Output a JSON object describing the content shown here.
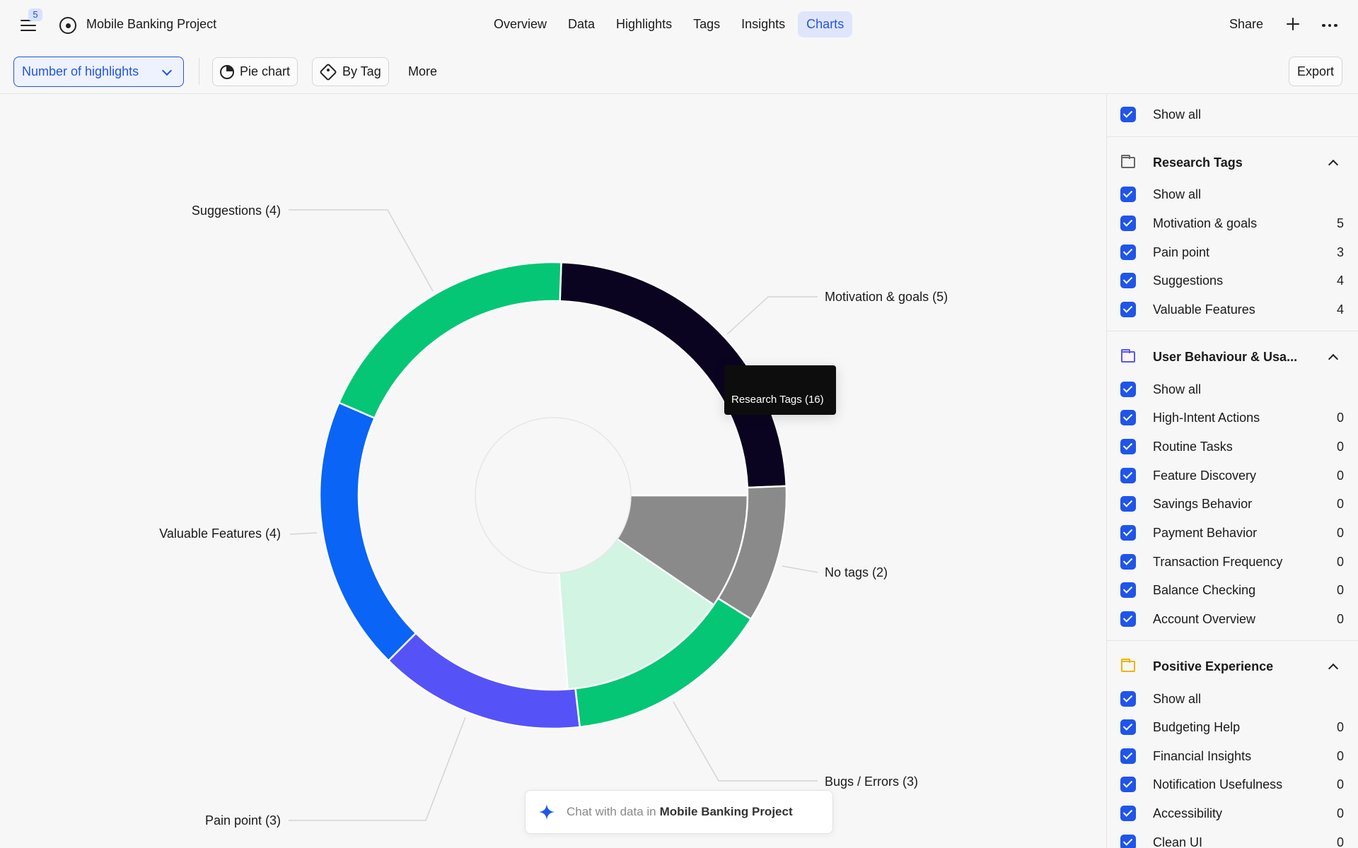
{
  "header": {
    "notification_count": "5",
    "project_title": "Mobile Banking Project",
    "tabs": [
      {
        "label": "Overview",
        "active": false
      },
      {
        "label": "Data",
        "active": false
      },
      {
        "label": "Highlights",
        "active": false
      },
      {
        "label": "Tags",
        "active": false
      },
      {
        "label": "Insights",
        "active": false
      },
      {
        "label": "Charts",
        "active": true
      }
    ],
    "share_label": "Share"
  },
  "toolbar": {
    "metric": "Number of highlights",
    "chart_type": "Pie chart",
    "group_by": "By Tag",
    "more": "More",
    "export": "Export"
  },
  "chart_data": {
    "type": "pie",
    "inner": [
      {
        "label": "Research Tags (16)",
        "value": 16,
        "color": "#f7f7f7"
      },
      {
        "label": "No tags (2)",
        "value": 2,
        "color": "#8a8a8a"
      },
      {
        "label": "Bugs / Errors (3)",
        "value": 3,
        "color": "#d1f4e3"
      }
    ],
    "outer": [
      {
        "label": "Motivation & goals (5)",
        "value": 5,
        "color": "#0b0420"
      },
      {
        "label": "No tags (2)",
        "value": 2,
        "color": "#8a8a8a"
      },
      {
        "label": "Bugs / Errors (3)",
        "value": 3,
        "color": "#04c675"
      },
      {
        "label": "Pain point (3)",
        "value": 3,
        "color": "#5552f8"
      },
      {
        "label": "Valuable Features (4)",
        "value": 4,
        "color": "#0a64f5"
      },
      {
        "label": "Suggestions (4)",
        "value": 4,
        "color": "#04c675"
      }
    ],
    "tooltip": "Research Tags (16)"
  },
  "chat": {
    "prefix": "Chat with data in",
    "project": "Mobile Banking Project"
  },
  "sidebar": {
    "top_show_all": "Show all",
    "groups": [
      {
        "title": "Research Tags",
        "folder_color": "#666666",
        "show_all": "Show all",
        "items": [
          {
            "label": "Motivation & goals",
            "count": "5"
          },
          {
            "label": "Pain point",
            "count": "3"
          },
          {
            "label": "Suggestions",
            "count": "4"
          },
          {
            "label": "Valuable Features",
            "count": "4"
          }
        ]
      },
      {
        "title": "User Behaviour & Usa...",
        "folder_color": "#5a55f0",
        "show_all": "Show all",
        "items": [
          {
            "label": "High-Intent Actions",
            "count": "0"
          },
          {
            "label": "Routine Tasks",
            "count": "0"
          },
          {
            "label": "Feature Discovery",
            "count": "0"
          },
          {
            "label": "Savings Behavior",
            "count": "0"
          },
          {
            "label": "Payment Behavior",
            "count": "0"
          },
          {
            "label": "Transaction Frequency",
            "count": "0"
          },
          {
            "label": "Balance Checking",
            "count": "0"
          },
          {
            "label": "Account Overview",
            "count": "0"
          }
        ]
      },
      {
        "title": "Positive Experience",
        "folder_color": "#f2b300",
        "show_all": "Show all",
        "items": [
          {
            "label": "Budgeting Help",
            "count": "0"
          },
          {
            "label": "Financial Insights",
            "count": "0"
          },
          {
            "label": "Notification Usefulness",
            "count": "0"
          },
          {
            "label": "Accessibility",
            "count": "0"
          },
          {
            "label": "Clean UI",
            "count": "0"
          }
        ]
      }
    ]
  }
}
